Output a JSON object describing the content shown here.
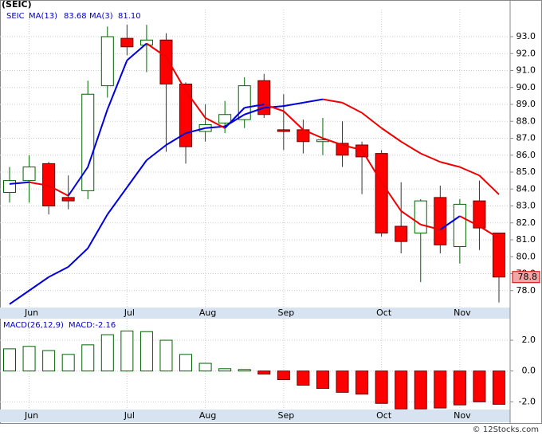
{
  "chart_data": [
    {
      "type": "candlestick",
      "title": "(SEIC)",
      "ticker": "SEIC",
      "categories": [
        null,
        "Jun",
        null,
        null,
        null,
        null,
        "Jul",
        null,
        null,
        null,
        "Aug",
        null,
        null,
        null,
        "Sep",
        null,
        null,
        null,
        null,
        "Oct",
        null,
        null,
        null,
        "Nov",
        null,
        null
      ],
      "open": [
        83.8,
        84.5,
        85.5,
        83.5,
        83.9,
        90.1,
        92.9,
        92.5,
        92.8,
        90.2,
        87.4,
        87.9,
        88.1,
        90.4,
        87.5,
        87.5,
        86.8,
        86.7,
        86.6,
        86.1,
        81.8,
        81.4,
        83.5,
        80.6,
        83.3,
        81.4
      ],
      "high": [
        85.3,
        86.0,
        85.6,
        84.8,
        90.4,
        93.6,
        93.7,
        93.7,
        93.2,
        90.3,
        89.0,
        89.2,
        90.6,
        90.8,
        89.6,
        88.1,
        88.2,
        88.0,
        86.8,
        86.3,
        84.4,
        83.4,
        84.2,
        83.4,
        84.5,
        81.4
      ],
      "low": [
        83.2,
        83.2,
        82.5,
        82.8,
        83.4,
        89.4,
        91.9,
        90.9,
        86.2,
        85.5,
        86.8,
        87.3,
        87.6,
        88.2,
        86.3,
        86.1,
        86.0,
        85.3,
        83.7,
        81.2,
        80.2,
        78.5,
        80.2,
        79.6,
        80.4,
        77.3
      ],
      "close": [
        84.5,
        85.3,
        83.0,
        83.3,
        89.6,
        93.0,
        92.4,
        92.8,
        90.2,
        86.5,
        87.8,
        88.4,
        90.1,
        88.4,
        87.4,
        86.8,
        86.9,
        86.0,
        85.9,
        81.4,
        80.9,
        83.3,
        80.7,
        83.1,
        81.7,
        78.8
      ],
      "last_label": "78.8",
      "up_color": "#006400",
      "down_color": "#ff0000",
      "line_up_color": "#0000dd",
      "line_down_color": "#ee0000",
      "series": [
        {
          "name": "MA(13)",
          "legend_value": "83.68",
          "values": [
            77.2,
            78.0,
            78.8,
            79.4,
            80.5,
            82.5,
            84.1,
            85.7,
            86.6,
            87.3,
            87.6,
            87.7,
            88.4,
            88.8,
            88.9,
            89.1,
            89.3,
            89.1,
            88.5,
            87.6,
            86.8,
            86.1,
            85.6,
            85.3,
            84.8,
            83.68
          ]
        },
        {
          "name": "MA(3)",
          "legend_value": "81.10",
          "values": [
            84.3,
            84.4,
            84.2,
            83.6,
            85.3,
            88.7,
            91.6,
            92.6,
            91.8,
            89.8,
            88.2,
            87.6,
            88.8,
            89.0,
            88.6,
            87.5,
            87.0,
            86.6,
            86.3,
            84.4,
            82.7,
            81.9,
            81.6,
            82.4,
            81.8,
            81.1
          ]
        }
      ],
      "ylim": [
        77.0,
        94.6
      ],
      "yticks": [
        {
          "value": 78,
          "label": "78.0"
        },
        {
          "value": 79,
          "label": "79.0"
        },
        {
          "value": 80,
          "label": "80.0"
        },
        {
          "value": 81,
          "label": "81.0"
        },
        {
          "value": 82,
          "label": "82.0"
        },
        {
          "value": 83,
          "label": "83.0"
        },
        {
          "value": 84,
          "label": "84.0"
        },
        {
          "value": 85,
          "label": "85.0"
        },
        {
          "value": 86,
          "label": "86.0"
        },
        {
          "value": 87,
          "label": "87.0"
        },
        {
          "value": 88,
          "label": "88.0"
        },
        {
          "value": 89,
          "label": "89.0"
        },
        {
          "value": 90,
          "label": "90.0"
        },
        {
          "value": 91,
          "label": "91.0"
        },
        {
          "value": 92,
          "label": "92.0"
        },
        {
          "value": 93,
          "label": "93.0"
        }
      ],
      "grid": true
    },
    {
      "type": "bar",
      "name": "MACD(26,12,9)",
      "legend_value": "MACD:-2.16",
      "categories": [
        null,
        "Jun",
        null,
        null,
        null,
        null,
        "Jul",
        null,
        null,
        null,
        "Aug",
        null,
        null,
        null,
        "Sep",
        null,
        null,
        null,
        null,
        "Oct",
        null,
        null,
        null,
        "Nov",
        null,
        null
      ],
      "values": [
        1.44,
        1.6,
        1.33,
        1.08,
        1.7,
        2.36,
        2.6,
        2.56,
        2.0,
        1.08,
        0.5,
        0.15,
        0.1,
        -0.2,
        -0.56,
        -0.92,
        -1.13,
        -1.38,
        -1.5,
        -2.1,
        -2.46,
        -2.46,
        -2.4,
        -2.2,
        -2.0,
        -2.16
      ],
      "up_color": "#006400",
      "down_color": "#ff0000",
      "ylim": [
        -2.5,
        3.4
      ],
      "yticks": [
        {
          "value": 2,
          "label": "2.0"
        },
        {
          "value": 0,
          "label": "0.0"
        },
        {
          "value": -2,
          "label": "-2.0"
        }
      ],
      "grid": true
    }
  ],
  "footer": "© 12Stocks.com"
}
